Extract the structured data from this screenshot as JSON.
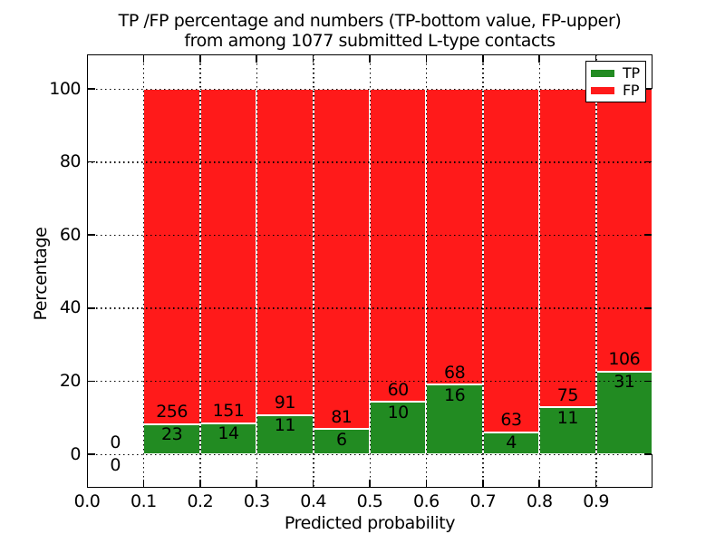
{
  "chart_data": {
    "type": "bar",
    "stacked": true,
    "normalized_to_percent": true,
    "title_line1": "TP /FP percentage and numbers (TP-bottom value, FP-upper)",
    "title_line2": "from among 1077 submitted L-type contacts",
    "xlabel": "Predicted probability",
    "ylabel": "Percentage",
    "x_tick_labels": [
      "0.0",
      "0.1",
      "0.2",
      "0.3",
      "0.4",
      "0.5",
      "0.6",
      "0.7",
      "0.8",
      "0.9"
    ],
    "x_tick_values": [
      0.0,
      0.1,
      0.2,
      0.3,
      0.4,
      0.5,
      0.6,
      0.7,
      0.8,
      0.9
    ],
    "y_tick_labels": [
      "0",
      "20",
      "40",
      "60",
      "80",
      "100"
    ],
    "y_tick_values": [
      0,
      20,
      40,
      60,
      80,
      100
    ],
    "xlim": [
      0.0,
      1.0
    ],
    "ylim": [
      -9,
      109
    ],
    "grid": "dotted black, drawn on top of bars",
    "bin_width": 0.1,
    "bins_x_start": [
      0.0,
      0.1,
      0.2,
      0.3,
      0.4,
      0.5,
      0.6,
      0.7,
      0.8,
      0.9
    ],
    "series": [
      {
        "name": "TP",
        "color": "#228b22",
        "position": "bottom",
        "values": [
          0,
          23,
          14,
          11,
          6,
          10,
          16,
          4,
          11,
          31
        ]
      },
      {
        "name": "FP",
        "color": "#ff1a1a",
        "position": "top",
        "values": [
          0,
          256,
          151,
          91,
          81,
          60,
          68,
          63,
          75,
          106
        ]
      }
    ],
    "bar_number_labels": {
      "fp_upper": [
        "0",
        "256",
        "151",
        "91",
        "81",
        "60",
        "68",
        "63",
        "75",
        "106"
      ],
      "tp_bottom": [
        "0",
        "23",
        "14",
        "11",
        "6",
        "10",
        "16",
        "4",
        "11",
        "31"
      ]
    },
    "legend": {
      "position": "upper right",
      "entries": [
        {
          "label": "TP",
          "color": "#228b22"
        },
        {
          "label": "FP",
          "color": "#ff1a1a"
        }
      ]
    },
    "colors": {
      "tp_green": "#228b22",
      "fp_red": "#ff1a1a",
      "text": "#000000",
      "background": "#ffffff"
    }
  }
}
